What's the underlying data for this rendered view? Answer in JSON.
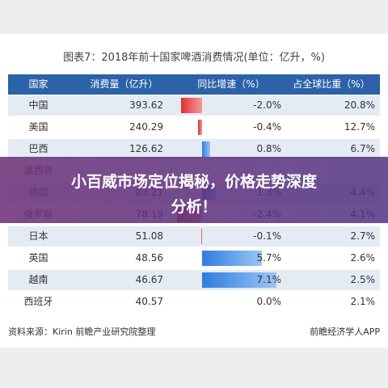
{
  "title": "图表7：2018年前十国家啤酒消费情况(单位：亿升，%)",
  "table": {
    "headers": [
      "国家",
      "消费量（亿升）",
      "同比增速（%）",
      "占全球比重（%）"
    ],
    "rows": [
      {
        "country": "中国",
        "consumption": "393.62",
        "growth": {
          "value": -2.0,
          "label": "-2.0%"
        },
        "share": "20.8%"
      },
      {
        "country": "美国",
        "consumption": "240.29",
        "growth": {
          "value": -0.4,
          "label": "-0.4%"
        },
        "share": "12.7%"
      },
      {
        "country": "巴西",
        "consumption": "126.62",
        "growth": {
          "value": 0.8,
          "label": "0.8%"
        },
        "share": "6.7%"
      },
      {
        "country": "墨西哥"
      },
      {
        "country": "德国",
        "consumption": "83.21",
        "growth": {
          "value": 1.3,
          "label": "1.3%"
        },
        "share": "4.4%"
      },
      {
        "country": "俄罗斯",
        "consumption": "78.19",
        "growth": {
          "value": -2.4,
          "label": "-2.4%"
        },
        "share": "4.1%"
      },
      {
        "country": "日本",
        "consumption": "51.08",
        "growth": {
          "value": -0.1,
          "label": "-0.1%"
        },
        "share": "2.7%"
      },
      {
        "country": "英国",
        "consumption": "48.56",
        "growth": {
          "value": 5.7,
          "label": "5.7%"
        },
        "share": "2.6%"
      },
      {
        "country": "越南",
        "consumption": "46.67",
        "growth": {
          "value": 7.1,
          "label": "7.1%"
        },
        "share": "2.5%"
      },
      {
        "country": "西班牙",
        "consumption": "40.57",
        "growth": {
          "value": 0.0,
          "label": "0.0%"
        },
        "share": "2.1%"
      }
    ]
  },
  "source": "资料来源：Kirin 前瞻产业研究院整理",
  "logo": "前瞻经济学人APP",
  "banner": {
    "line1": "小百威市场定位揭秘，价格走势深度",
    "line2": "分析！"
  }
}
